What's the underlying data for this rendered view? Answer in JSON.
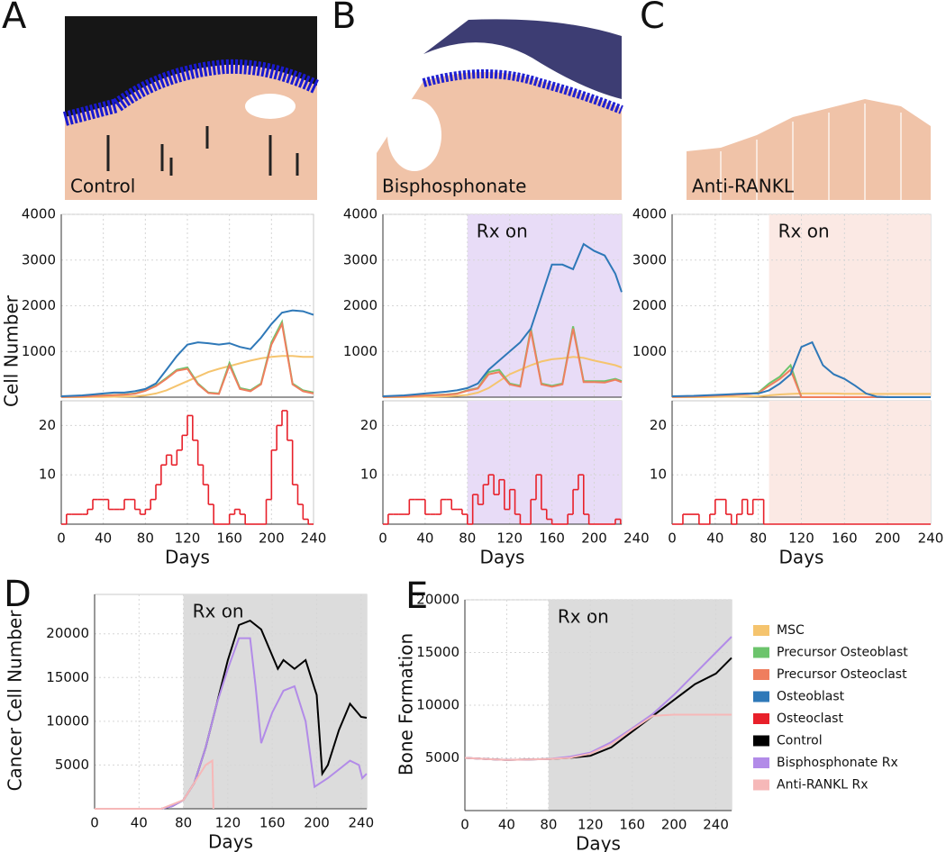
{
  "chart_data": [
    {
      "type": "line",
      "panel": "A",
      "image_label": "Control",
      "ylabel": "Cell Number",
      "x": [
        0,
        10,
        20,
        30,
        40,
        50,
        60,
        70,
        80,
        90,
        100,
        110,
        120,
        130,
        140,
        150,
        160,
        170,
        180,
        190,
        200,
        210,
        220,
        230,
        240
      ],
      "xlim": [
        0,
        240
      ],
      "ylim": [
        0,
        4000
      ],
      "xticks": [
        0,
        40,
        80,
        120,
        160,
        200,
        240
      ],
      "xtick_labels": false,
      "yticks": [
        1000,
        2000,
        3000,
        4000
      ],
      "grid": true,
      "series": [
        {
          "name": "MSC",
          "color": "#f5c46e",
          "values": [
            0,
            0,
            0,
            5,
            5,
            10,
            15,
            20,
            40,
            80,
            150,
            250,
            350,
            450,
            550,
            620,
            680,
            740,
            800,
            850,
            880,
            900,
            900,
            880,
            880
          ]
        },
        {
          "name": "Precursor Osteoblast",
          "color": "#6cc46c",
          "values": [
            10,
            15,
            20,
            30,
            40,
            50,
            60,
            80,
            150,
            250,
            420,
            600,
            650,
            300,
            100,
            80,
            750,
            200,
            150,
            300,
            1200,
            1650,
            300,
            150,
            100
          ]
        },
        {
          "name": "Precursor Osteoclast",
          "color": "#ef7e5e",
          "values": [
            5,
            10,
            15,
            25,
            35,
            45,
            55,
            75,
            140,
            240,
            400,
            580,
            620,
            280,
            90,
            70,
            700,
            180,
            130,
            280,
            1150,
            1600,
            280,
            130,
            80
          ]
        },
        {
          "name": "Osteoblast",
          "color": "#2e78b8",
          "values": [
            20,
            30,
            40,
            60,
            80,
            100,
            100,
            130,
            180,
            300,
            600,
            900,
            1150,
            1200,
            1180,
            1150,
            1180,
            1100,
            1050,
            1300,
            1600,
            1850,
            1900,
            1880,
            1800
          ]
        }
      ]
    },
    {
      "type": "line",
      "drawstyle": "steps",
      "xlabel": "Days",
      "x": [
        0,
        5,
        10,
        15,
        20,
        25,
        30,
        35,
        40,
        45,
        50,
        55,
        60,
        65,
        70,
        75,
        80,
        85,
        90,
        95,
        100,
        105,
        110,
        115,
        120,
        125,
        130,
        135,
        140,
        145,
        150,
        155,
        160,
        165,
        170,
        175,
        180,
        185,
        190,
        195,
        200,
        205,
        210,
        215,
        220,
        225,
        230,
        235,
        240
      ],
      "xlim": [
        0,
        240
      ],
      "ylim": [
        0,
        25
      ],
      "xticks": [
        0,
        40,
        80,
        120,
        160,
        200,
        240
      ],
      "yticks": [
        10,
        20
      ],
      "grid": true,
      "series": [
        {
          "name": "Osteoclast",
          "color": "#e8202a",
          "values": [
            0,
            2,
            2,
            2,
            2,
            3,
            5,
            5,
            5,
            3,
            3,
            3,
            5,
            5,
            3,
            2,
            3,
            5,
            8,
            12,
            14,
            12,
            15,
            18,
            22,
            17,
            12,
            8,
            4,
            0,
            0,
            0,
            2,
            3,
            2,
            0,
            0,
            0,
            0,
            5,
            15,
            20,
            23,
            17,
            8,
            4,
            1,
            0,
            0
          ]
        }
      ]
    },
    {
      "type": "line",
      "panel": "B",
      "image_label": "Bisphosphonate",
      "x": [
        0,
        10,
        20,
        30,
        40,
        50,
        60,
        70,
        80,
        90,
        100,
        110,
        120,
        130,
        140,
        150,
        160,
        170,
        180,
        190,
        200,
        210,
        220,
        226
      ],
      "xlim": [
        0,
        226
      ],
      "ylim": [
        0,
        4000
      ],
      "xticks": [
        0,
        40,
        80,
        120,
        160,
        200
      ],
      "xtick_labels": false,
      "yticks": [
        1000,
        2000,
        3000,
        4000
      ],
      "grid": true,
      "shade": {
        "from": 80,
        "color": "#e8dcf7",
        "label": "Rx on"
      },
      "series": [
        {
          "color": "#f5c46e",
          "values": [
            0,
            0,
            0,
            5,
            10,
            15,
            20,
            30,
            50,
            100,
            200,
            350,
            500,
            600,
            700,
            780,
            830,
            850,
            880,
            860,
            800,
            750,
            700,
            650
          ]
        },
        {
          "color": "#6cc46c",
          "values": [
            10,
            15,
            20,
            30,
            40,
            50,
            60,
            80,
            150,
            200,
            550,
            600,
            300,
            250,
            1500,
            300,
            250,
            300,
            1550,
            350,
            350,
            350,
            400,
            350
          ]
        },
        {
          "color": "#ef7e5e",
          "values": [
            5,
            10,
            15,
            25,
            35,
            45,
            55,
            75,
            140,
            190,
            500,
            550,
            280,
            230,
            1450,
            280,
            230,
            280,
            1500,
            330,
            330,
            320,
            380,
            330
          ]
        },
        {
          "color": "#2e78b8",
          "values": [
            20,
            30,
            40,
            60,
            80,
            100,
            120,
            150,
            200,
            300,
            600,
            800,
            1000,
            1200,
            1500,
            2200,
            2900,
            2900,
            2800,
            3350,
            3200,
            3100,
            2700,
            2300
          ]
        }
      ]
    },
    {
      "type": "line",
      "drawstyle": "steps",
      "xlabel": "Days",
      "x": [
        0,
        5,
        10,
        15,
        20,
        25,
        30,
        35,
        40,
        45,
        50,
        55,
        60,
        65,
        70,
        75,
        80,
        85,
        90,
        95,
        100,
        105,
        110,
        115,
        120,
        125,
        130,
        135,
        140,
        145,
        150,
        155,
        160,
        165,
        170,
        175,
        180,
        185,
        190,
        195,
        200,
        205,
        210,
        215,
        220,
        225
      ],
      "xlim": [
        0,
        226
      ],
      "ylim": [
        0,
        25
      ],
      "xticks": [
        0,
        40,
        80,
        120,
        160,
        200,
        240
      ],
      "yticks": [
        10,
        20
      ],
      "grid": true,
      "shade": {
        "from": 80,
        "color": "#e8dcf7"
      },
      "series": [
        {
          "color": "#e8202a",
          "values": [
            0,
            2,
            2,
            2,
            2,
            5,
            5,
            5,
            2,
            2,
            2,
            5,
            5,
            3,
            3,
            2,
            0,
            6,
            4,
            8,
            10,
            6,
            9,
            3,
            7,
            2,
            0,
            0,
            5,
            10,
            3,
            1,
            0,
            0,
            0,
            2,
            7,
            10,
            2,
            0,
            0,
            0,
            0,
            0,
            1,
            0
          ]
        }
      ]
    },
    {
      "type": "line",
      "panel": "C",
      "image_label": "Anti-RANKL",
      "x": [
        0,
        10,
        20,
        30,
        40,
        50,
        60,
        70,
        80,
        90,
        100,
        110,
        120,
        130,
        140,
        150,
        160,
        170,
        180,
        190,
        200,
        210,
        220,
        230,
        240
      ],
      "xlim": [
        0,
        240
      ],
      "ylim": [
        0,
        4000
      ],
      "xticks": [
        0,
        40,
        80,
        120,
        160,
        200,
        240
      ],
      "xtick_labels": false,
      "yticks": [
        1000,
        2000,
        3000,
        4000
      ],
      "grid": true,
      "shade": {
        "from": 90,
        "color": "#fbe9e4",
        "label": "Rx on"
      },
      "series": [
        {
          "color": "#f5c46e",
          "values": [
            0,
            0,
            0,
            0,
            5,
            10,
            10,
            15,
            20,
            40,
            60,
            70,
            80,
            80,
            80,
            80,
            75,
            75,
            75,
            70,
            70,
            70,
            70,
            70,
            70
          ]
        },
        {
          "color": "#6cc46c",
          "values": [
            10,
            15,
            20,
            30,
            40,
            50,
            60,
            70,
            100,
            300,
            450,
            700,
            0,
            0,
            0,
            0,
            0,
            0,
            0,
            0,
            0,
            0,
            0,
            0,
            0
          ]
        },
        {
          "color": "#ef7e5e",
          "values": [
            5,
            10,
            15,
            25,
            35,
            45,
            55,
            65,
            90,
            250,
            400,
            600,
            0,
            0,
            0,
            0,
            0,
            0,
            0,
            0,
            0,
            0,
            0,
            0,
            0
          ]
        },
        {
          "color": "#2e78b8",
          "values": [
            20,
            25,
            30,
            40,
            50,
            60,
            70,
            80,
            80,
            150,
            300,
            500,
            1100,
            1200,
            700,
            500,
            400,
            250,
            80,
            10,
            0,
            0,
            0,
            0,
            0
          ]
        }
      ]
    },
    {
      "type": "line",
      "drawstyle": "steps",
      "xlabel": "Days",
      "x": [
        0,
        10,
        25,
        35,
        40,
        50,
        55,
        60,
        65,
        70,
        75,
        80,
        85,
        240
      ],
      "xlim": [
        0,
        240
      ],
      "ylim": [
        0,
        25
      ],
      "xticks": [
        0,
        40,
        80,
        120,
        160,
        200,
        240
      ],
      "yticks": [
        10,
        20
      ],
      "grid": true,
      "shade": {
        "from": 90,
        "color": "#fbe9e4"
      },
      "series": [
        {
          "color": "#e8202a",
          "values": [
            0,
            2,
            0,
            2,
            5,
            2,
            0,
            2,
            5,
            2,
            5,
            5,
            0,
            0
          ]
        }
      ]
    },
    {
      "type": "line",
      "panel": "D",
      "ylabel": "Cancer Cell Number",
      "xlabel": "Days",
      "xlim": [
        0,
        245
      ],
      "ylim": [
        0,
        24500
      ],
      "xticks": [
        0,
        40,
        80,
        120,
        160,
        200,
        240
      ],
      "yticks": [
        5000,
        10000,
        15000,
        20000
      ],
      "grid": true,
      "shade": {
        "from": 80,
        "color": "#dcdcdc",
        "label": "Rx on"
      },
      "series": [
        {
          "color": "#000000",
          "x": [
            0,
            60,
            70,
            80,
            90,
            100,
            110,
            120,
            130,
            140,
            150,
            160,
            165,
            170,
            180,
            190,
            200,
            205,
            210,
            220,
            230,
            240,
            245
          ],
          "values": [
            0,
            0,
            300,
            1000,
            3000,
            7000,
            12000,
            17000,
            21000,
            21500,
            20500,
            17500,
            16000,
            17000,
            16000,
            17000,
            13000,
            4000,
            5000,
            9000,
            12000,
            10500,
            10400
          ]
        },
        {
          "color": "#b28be8",
          "x": [
            0,
            60,
            70,
            80,
            90,
            100,
            110,
            120,
            130,
            140,
            145,
            150,
            160,
            170,
            180,
            190,
            198,
            210,
            230,
            238,
            241,
            245
          ],
          "values": [
            0,
            0,
            300,
            1000,
            3000,
            7000,
            12000,
            16000,
            19500,
            19500,
            14000,
            7500,
            11000,
            13500,
            14000,
            10000,
            2500,
            3500,
            5500,
            5000,
            3500,
            4000
          ]
        },
        {
          "color": "#f6b8b8",
          "x": [
            0,
            60,
            80,
            90,
            100,
            106,
            107
          ],
          "values": [
            0,
            0,
            1000,
            3000,
            5000,
            5500,
            0
          ]
        }
      ]
    },
    {
      "type": "line",
      "panel": "E",
      "ylabel": "Bone Formation",
      "xlabel": "Days",
      "x": [
        0,
        20,
        40,
        60,
        80,
        100,
        120,
        140,
        160,
        180,
        200,
        220,
        240,
        255
      ],
      "xlim": [
        0,
        255
      ],
      "ylim": [
        0,
        20000
      ],
      "xticks": [
        0,
        40,
        80,
        120,
        160,
        200,
        240
      ],
      "yticks": [
        5000,
        10000,
        15000,
        20000
      ],
      "grid": true,
      "shade": {
        "from": 80,
        "color": "#dcdcdc",
        "label": "Rx on"
      },
      "series": [
        {
          "name": "Control",
          "color": "#000000",
          "values": [
            5000,
            4900,
            4800,
            4850,
            4900,
            5000,
            5200,
            6000,
            7500,
            9000,
            10500,
            12000,
            13000,
            14500
          ]
        },
        {
          "name": "Bisphosphonate Rx",
          "color": "#b28be8",
          "values": [
            5000,
            4900,
            4800,
            4850,
            4900,
            5100,
            5500,
            6500,
            7800,
            9200,
            11000,
            13000,
            15000,
            16500
          ]
        },
        {
          "name": "Anti-RANKL Rx",
          "color": "#f6b8b8",
          "values": [
            5000,
            4900,
            4800,
            4850,
            4900,
            5000,
            5400,
            6300,
            7700,
            9000,
            9100,
            9100,
            9100,
            9100
          ]
        }
      ]
    }
  ]
}
